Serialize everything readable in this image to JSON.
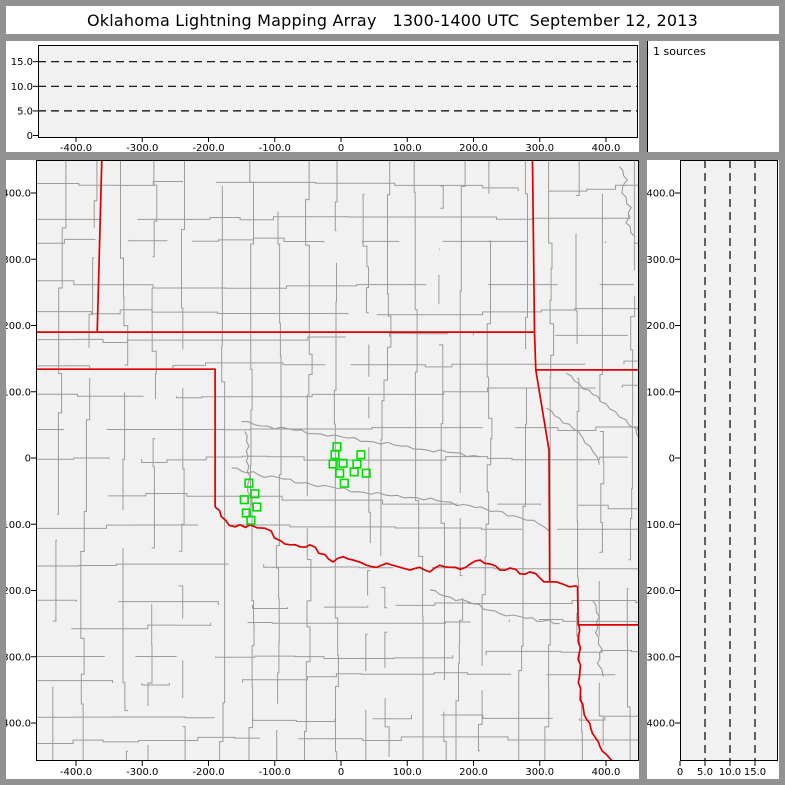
{
  "title": {
    "text": "Oklahoma Lightning Mapping Array   1300-1400 UTC  September 12, 2013"
  },
  "legend": {
    "sources_label": "1 sources"
  },
  "colors": {
    "window_border": "#919191",
    "separator": "#919191",
    "plot_bg": "#f1f1f1",
    "county_line": "#9c9c9c",
    "river_line": "#9c9c9c",
    "state_line": "#dd0000",
    "source_marker": "#00dd00",
    "axis": "#000000"
  },
  "panels": {
    "ew_altitude": {
      "x_tick_labels": [
        "-400.0",
        "-300.0",
        "-200.0",
        "-100.0",
        "0",
        "100.0",
        "200.0",
        "300.0",
        "400.0"
      ],
      "x_tick_values": [
        -400,
        -300,
        -200,
        -100,
        0,
        100,
        200,
        300,
        400
      ],
      "y_tick_labels": [
        "15.0",
        "10.0",
        "5.0",
        "0"
      ],
      "y_tick_values": [
        15,
        10,
        5,
        0
      ],
      "dashed_altitudes_km": [
        5,
        10,
        15
      ]
    },
    "plan_view": {
      "x_tick_labels": [
        "-400.0",
        "-300.0",
        "-200.0",
        "-100.0",
        "0",
        "100.0",
        "200.0",
        "300.0",
        "400.0"
      ],
      "x_tick_values": [
        -400,
        -300,
        -200,
        -100,
        0,
        100,
        200,
        300,
        400
      ],
      "y_tick_labels": [
        "400.0",
        "300.0",
        "200.0",
        "100.0",
        "0",
        "-100.0",
        "-200.0",
        "-300.0",
        "-400.0"
      ],
      "y_tick_values": [
        400,
        300,
        200,
        100,
        0,
        -100,
        -200,
        -300,
        -400
      ]
    },
    "ns_altitude": {
      "x_tick_labels": [
        "0",
        "5.0",
        "10.0",
        "15.0"
      ],
      "x_tick_values": [
        0,
        5,
        10,
        15
      ],
      "y_tick_labels": [
        "400.0",
        "300.0",
        "200.0",
        "100.0",
        "0",
        "-100.0",
        "-200.0",
        "-300.0",
        "-400.0"
      ],
      "y_tick_values": [
        400,
        300,
        200,
        100,
        0,
        -100,
        -200,
        -300,
        -400
      ],
      "dashed_altitudes_km": [
        5,
        10,
        15
      ]
    }
  },
  "map": {
    "state_borders_km": [
      [
        [
          -361,
          450
        ],
        [
          -368,
          190
        ]
      ],
      [
        [
          -460,
          190
        ],
        [
          291,
          190
        ]
      ],
      [
        [
          289,
          450
        ],
        [
          292,
          190
        ]
      ],
      [
        [
          292,
          190
        ],
        [
          294,
          133
        ],
        [
          314,
          12
        ],
        [
          315,
          -187
        ]
      ],
      [
        [
          294,
          133
        ],
        [
          451,
          133
        ]
      ],
      [
        [
          357,
          -193
        ],
        [
          358,
          -252
        ],
        [
          451,
          -252
        ]
      ],
      [
        [
          -460,
          134
        ],
        [
          -190,
          134
        ],
        [
          -190,
          -74
        ]
      ]
    ],
    "red_river_km": [
      [
        -190,
        -74
      ],
      [
        -174,
        -94
      ],
      [
        -160,
        -104
      ],
      [
        -137,
        -101
      ],
      [
        -115,
        -106
      ],
      [
        -91,
        -125
      ],
      [
        -77,
        -131
      ],
      [
        -62,
        -134
      ],
      [
        -47,
        -131
      ],
      [
        -24,
        -146
      ],
      [
        -12,
        -157
      ],
      [
        3,
        -149
      ],
      [
        18,
        -154
      ],
      [
        39,
        -162
      ],
      [
        54,
        -165
      ],
      [
        69,
        -159
      ],
      [
        89,
        -165
      ],
      [
        104,
        -169
      ],
      [
        119,
        -165
      ],
      [
        134,
        -172
      ],
      [
        149,
        -162
      ],
      [
        165,
        -165
      ],
      [
        180,
        -168
      ],
      [
        195,
        -160
      ],
      [
        210,
        -154
      ],
      [
        225,
        -160
      ],
      [
        240,
        -169
      ],
      [
        255,
        -166
      ],
      [
        270,
        -175
      ],
      [
        285,
        -172
      ],
      [
        300,
        -181
      ],
      [
        315,
        -187
      ],
      [
        334,
        -190
      ],
      [
        356,
        -193
      ]
    ],
    "sabine_river_km": [
      [
        359,
        -252
      ],
      [
        360,
        -330
      ],
      [
        361,
        -365
      ],
      [
        366,
        -380
      ],
      [
        371,
        -395
      ],
      [
        377,
        -408
      ],
      [
        384,
        -422
      ],
      [
        391,
        -436
      ],
      [
        400,
        -447
      ],
      [
        409,
        -457
      ]
    ],
    "gray_rivers_km": [
      [
        [
          -145,
          40
        ],
        [
          -139,
          18
        ],
        [
          -143,
          -5
        ],
        [
          -137,
          -28
        ],
        [
          -141,
          -50
        ],
        [
          -136,
          -70
        ],
        [
          -139,
          -88
        ]
      ],
      [
        [
          -150,
          55
        ],
        [
          -110,
          48
        ],
        [
          -70,
          42
        ],
        [
          -30,
          36
        ],
        [
          10,
          30
        ],
        [
          50,
          24
        ],
        [
          90,
          18
        ],
        [
          130,
          12
        ],
        [
          170,
          8
        ],
        [
          210,
          2
        ]
      ],
      [
        [
          -165,
          -15
        ],
        [
          -125,
          -25
        ],
        [
          -85,
          -32
        ],
        [
          -45,
          -40
        ],
        [
          -5,
          -46
        ],
        [
          35,
          -52
        ],
        [
          75,
          -57
        ],
        [
          115,
          -60
        ],
        [
          155,
          -66
        ],
        [
          195,
          -72
        ],
        [
          235,
          -80
        ],
        [
          270,
          -90
        ],
        [
          300,
          -100
        ],
        [
          314,
          -110
        ]
      ],
      [
        [
          134,
          -199
        ],
        [
          165,
          -210
        ],
        [
          200,
          -220
        ],
        [
          240,
          -235
        ],
        [
          280,
          -242
        ],
        [
          330,
          -250
        ]
      ],
      [
        [
          340,
          128
        ],
        [
          360,
          112
        ],
        [
          380,
          96
        ],
        [
          400,
          82
        ],
        [
          420,
          62
        ],
        [
          445,
          45
        ],
        [
          450,
          30
        ]
      ],
      [
        [
          420,
          440
        ],
        [
          432,
          420
        ],
        [
          424,
          400
        ],
        [
          438,
          378
        ],
        [
          430,
          355
        ],
        [
          444,
          334
        ]
      ],
      [
        [
          380,
          -215
        ],
        [
          390,
          -240
        ],
        [
          384,
          -264
        ],
        [
          394,
          -288
        ],
        [
          387,
          -310
        ],
        [
          396,
          -330
        ]
      ],
      [
        [
          310,
          75
        ],
        [
          330,
          60
        ],
        [
          350,
          45
        ],
        [
          365,
          30
        ],
        [
          380,
          10
        ],
        [
          390,
          -10
        ]
      ]
    ]
  },
  "chart_data": {
    "type": "scatter",
    "title": "Oklahoma Lightning Mapping Array 1300-1400 UTC September 12, 2013",
    "layout": "LMA composite: top panel altitude(km) vs east-west(km), main panel plan view map, right panel north-south(km) vs altitude(km)",
    "x_range_km": [
      -460,
      451
    ],
    "y_range_km": [
      -457,
      450
    ],
    "altitude_axis_km": {
      "ticks": [
        0,
        5,
        10,
        15
      ],
      "dashed_gridlines": [
        5,
        10,
        15
      ]
    },
    "plan_x_ticks_km": [
      -400,
      -300,
      -200,
      -100,
      0,
      100,
      200,
      300,
      400
    ],
    "plan_y_ticks_km": [
      400,
      300,
      200,
      100,
      0,
      -100,
      -200,
      -300,
      -400
    ],
    "sources_count_label": "1 sources",
    "series": [
      {
        "name": "lightning-sources",
        "marker": "open-square",
        "color": "#00dd00",
        "points_km_east_north": [
          [
            -6,
            17
          ],
          [
            -9,
            5
          ],
          [
            30,
            5
          ],
          [
            -12,
            -9
          ],
          [
            3,
            -8
          ],
          [
            24,
            -9
          ],
          [
            -2,
            -23
          ],
          [
            20,
            -21
          ],
          [
            38,
            -23
          ],
          [
            5,
            -38
          ],
          [
            -139,
            -38
          ],
          [
            -130,
            -54
          ],
          [
            -146,
            -63
          ],
          [
            -127,
            -74
          ],
          [
            -143,
            -83
          ],
          [
            -136,
            -94
          ]
        ]
      }
    ],
    "altitude_panels_points": []
  }
}
